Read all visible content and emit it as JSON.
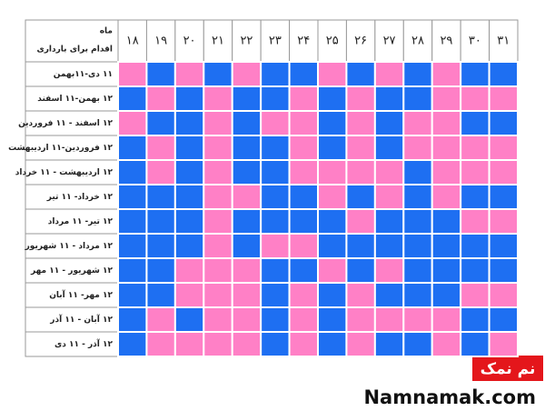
{
  "table": {
    "corner": {
      "top": "ماه",
      "bottom": "اقدام برای بارداری"
    },
    "columns": [
      "۱۸",
      "۱۹",
      "۲۰",
      "۲۱",
      "۲۲",
      "۲۳",
      "۲۴",
      "۲۵",
      "۲۶",
      "۲۷",
      "۲۸",
      "۲۹",
      "۳۰",
      "۳۱"
    ],
    "colors": {
      "P": "#ff80c6",
      "B": "#1e6ff2"
    },
    "rows": [
      {
        "label": "۱۱ دی-۱۱بهمن",
        "cells": [
          "P",
          "B",
          "P",
          "B",
          "P",
          "B",
          "B",
          "P",
          "B",
          "P",
          "B",
          "P",
          "B",
          "B"
        ]
      },
      {
        "label": "۱۲ بهمن-۱۱ اسفند",
        "cells": [
          "B",
          "P",
          "B",
          "P",
          "B",
          "B",
          "P",
          "B",
          "P",
          "B",
          "B",
          "P",
          "P",
          "P"
        ]
      },
      {
        "label": "۱۲ اسفند - ۱۱ فروردین",
        "cells": [
          "P",
          "B",
          "B",
          "P",
          "B",
          "P",
          "P",
          "B",
          "P",
          "B",
          "P",
          "P",
          "B",
          "B"
        ]
      },
      {
        "label": "۱۲ فروردین-۱۱ اردیبهشت",
        "cells": [
          "B",
          "P",
          "B",
          "P",
          "B",
          "B",
          "P",
          "B",
          "P",
          "B",
          "P",
          "P",
          "P",
          "P"
        ]
      },
      {
        "label": "۱۲ اردیبهشت - ۱۱ خرداد",
        "cells": [
          "B",
          "P",
          "B",
          "P",
          "B",
          "B",
          "P",
          "P",
          "P",
          "P",
          "B",
          "P",
          "P",
          "P"
        ]
      },
      {
        "label": "۱۲ خرداد- ۱۱ تیر",
        "cells": [
          "B",
          "B",
          "B",
          "P",
          "P",
          "B",
          "B",
          "P",
          "B",
          "P",
          "B",
          "P",
          "B",
          "B"
        ]
      },
      {
        "label": "۱۲ تیر- ۱۱ مرداد",
        "cells": [
          "B",
          "B",
          "B",
          "P",
          "B",
          "B",
          "B",
          "B",
          "P",
          "B",
          "B",
          "B",
          "P",
          "P"
        ]
      },
      {
        "label": "۱۲ مرداد - ۱۱ شهریور",
        "cells": [
          "B",
          "B",
          "B",
          "P",
          "B",
          "P",
          "P",
          "B",
          "B",
          "B",
          "B",
          "B",
          "B",
          "B"
        ]
      },
      {
        "label": "۱۲ شهریور - ۱۱ مهر",
        "cells": [
          "B",
          "B",
          "P",
          "P",
          "P",
          "B",
          "B",
          "P",
          "B",
          "P",
          "B",
          "B",
          "B",
          "B"
        ]
      },
      {
        "label": "۱۲ مهر- ۱۱ آبان",
        "cells": [
          "B",
          "B",
          "P",
          "P",
          "P",
          "B",
          "P",
          "B",
          "P",
          "B",
          "B",
          "B",
          "P",
          "P"
        ]
      },
      {
        "label": "۱۲ آبان - ۱۱ آذر",
        "cells": [
          "B",
          "P",
          "B",
          "P",
          "P",
          "B",
          "P",
          "B",
          "P",
          "P",
          "P",
          "P",
          "B",
          "B"
        ]
      },
      {
        "label": "۱۲ آذر - ۱۱ دی",
        "cells": [
          "B",
          "P",
          "P",
          "P",
          "P",
          "B",
          "P",
          "B",
          "P",
          "B",
          "B",
          "P",
          "B",
          "P"
        ]
      }
    ]
  },
  "logo": {
    "text": "نم نمک",
    "site": "Namnamak.com"
  }
}
